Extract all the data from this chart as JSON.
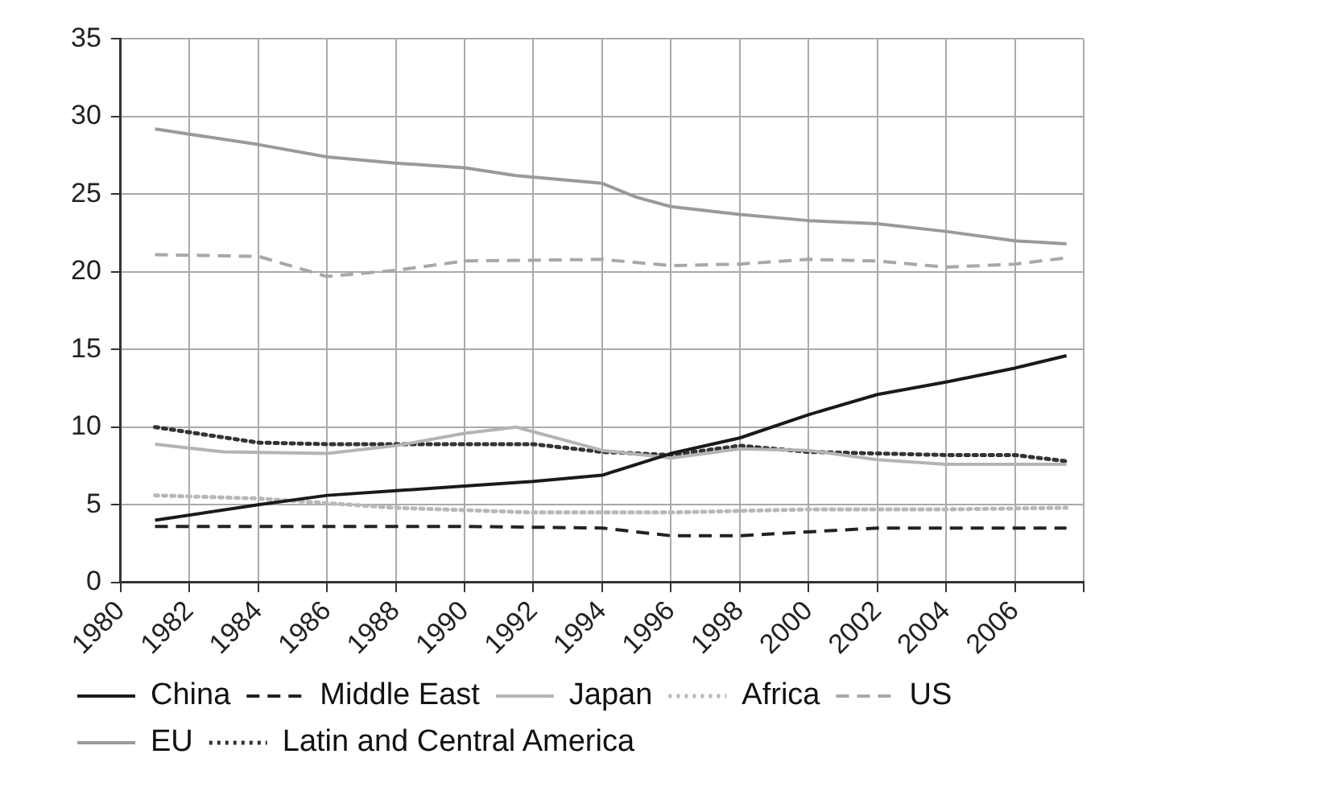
{
  "chart_data": {
    "type": "line",
    "xlim": [
      1980,
      2008
    ],
    "xticks": [
      1980,
      1982,
      1984,
      1986,
      1988,
      1990,
      1992,
      1994,
      1996,
      1998,
      2000,
      2002,
      2004,
      2006,
      {
        "value": 2008,
        "label": null
      }
    ],
    "ylim": [
      0,
      35
    ],
    "yticks": [
      0,
      5,
      10,
      15,
      20,
      25,
      30,
      35
    ],
    "grid": true,
    "legend": "bottom",
    "marker": "none",
    "series": [
      {
        "name": "China",
        "color": "#1a1a1a",
        "line_style": "solid",
        "x": [
          1981,
          1984,
          1986,
          1988,
          1990,
          1992,
          1994,
          1996,
          1998,
          2000,
          2002,
          2004,
          2006,
          2007.5
        ],
        "values": [
          4.0,
          5.0,
          5.6,
          5.9,
          6.2,
          6.5,
          6.9,
          8.3,
          9.3,
          10.8,
          12.1,
          12.9,
          13.8,
          14.6
        ]
      },
      {
        "name": "Middle East",
        "color": "#222222",
        "line_style": "dashed",
        "x": [
          1981,
          1986,
          1990,
          1994,
          1996,
          1998,
          2002,
          2007.5
        ],
        "values": [
          3.6,
          3.6,
          3.6,
          3.5,
          3.0,
          3.0,
          3.5,
          3.5
        ]
      },
      {
        "name": "Japan",
        "color": "#b4b4b4",
        "line_style": "solid",
        "x": [
          1981,
          1983,
          1986,
          1988,
          1990,
          1991.5,
          1994,
          1996,
          1998,
          2000,
          2002,
          2004,
          2006,
          2007.5
        ],
        "values": [
          8.9,
          8.4,
          8.3,
          8.8,
          9.6,
          10.0,
          8.5,
          8.0,
          8.6,
          8.5,
          7.9,
          7.6,
          7.6,
          7.6
        ]
      },
      {
        "name": "Africa",
        "color": "#b8b8b8",
        "line_style": "dotted",
        "x": [
          1981,
          1984,
          1988,
          1992,
          1996,
          2000,
          2004,
          2007.5
        ],
        "values": [
          5.6,
          5.4,
          4.8,
          4.5,
          4.5,
          4.7,
          4.7,
          4.8
        ]
      },
      {
        "name": "US",
        "color": "#a8a8a8",
        "line_style": "dashed",
        "x": [
          1981,
          1984,
          1986,
          1988,
          1990,
          1994,
          1996,
          1998,
          2000,
          2002,
          2004,
          2006,
          2007.5
        ],
        "values": [
          21.1,
          21.0,
          19.7,
          20.1,
          20.7,
          20.8,
          20.4,
          20.5,
          20.8,
          20.7,
          20.3,
          20.5,
          20.9
        ]
      },
      {
        "name": "EU",
        "color": "#9a9a9a",
        "line_style": "solid",
        "x": [
          1981,
          1984,
          1986,
          1988,
          1990,
          1991.5,
          1994,
          1995,
          1996,
          1998,
          2000,
          2002,
          2004,
          2006,
          2007.5
        ],
        "values": [
          29.2,
          28.2,
          27.4,
          27.0,
          26.7,
          26.2,
          25.7,
          24.8,
          24.2,
          23.7,
          23.3,
          23.1,
          22.6,
          22.0,
          21.8
        ]
      },
      {
        "name": "Latin and Central America",
        "color": "#333333",
        "line_style": "dotted",
        "x": [
          1981,
          1984,
          1986,
          1988,
          1990,
          1992,
          1994,
          1996,
          1998,
          2000,
          2002,
          2004,
          2006,
          2007.5
        ],
        "values": [
          10.0,
          9.0,
          8.9,
          8.9,
          8.9,
          8.9,
          8.4,
          8.2,
          8.8,
          8.4,
          8.3,
          8.2,
          8.2,
          7.8
        ]
      }
    ]
  }
}
